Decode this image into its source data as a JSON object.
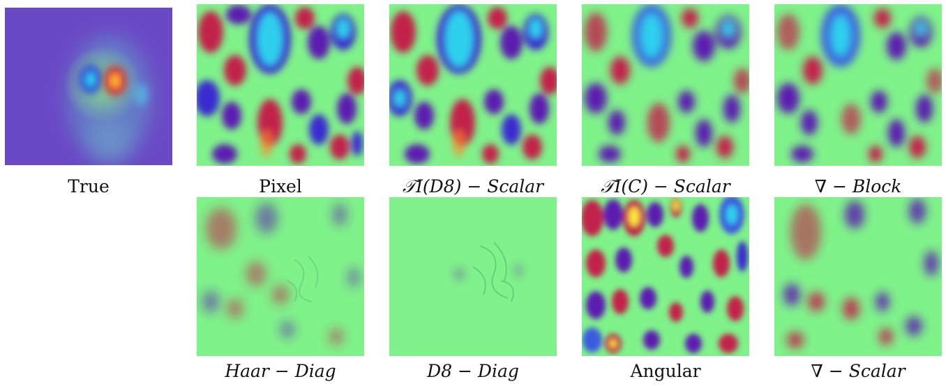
{
  "panels": [
    {
      "id": "true",
      "caption": "True",
      "italic": false
    },
    {
      "id": "pixel",
      "caption": "Pixel",
      "italic": false
    },
    {
      "id": "ti-d8-scalar",
      "caption": "𝒯I(D8) − Scalar",
      "italic": true
    },
    {
      "id": "ti-c-scalar",
      "caption": "𝒯I(C) − Scalar",
      "italic": true
    },
    {
      "id": "grad-block",
      "caption": "∇ − Block",
      "italic": true
    },
    {
      "id": "haar-diag",
      "caption": "Haar − Diag",
      "italic": true
    },
    {
      "id": "d8-diag",
      "caption": "D8 − Diag",
      "italic": true
    },
    {
      "id": "angular",
      "caption": "Angular",
      "italic": false
    },
    {
      "id": "grad-scalar",
      "caption": "∇ − Scalar",
      "italic": true
    }
  ],
  "colors": {
    "background_green": "#7ff28a",
    "true_background": "#6a49c6",
    "red": "#c2224a",
    "purple": "#5b1fb0",
    "cyan": "#2fd0ee",
    "blue": "#3a5ae0",
    "yellow": "#ffe23a",
    "orange": "#ff8a2a"
  }
}
